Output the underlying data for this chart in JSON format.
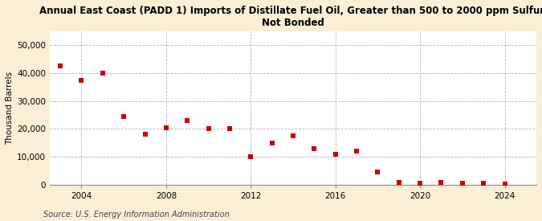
{
  "title": "Annual East Coast (PADD 1) Imports of Distillate Fuel Oil, Greater than 500 to 2000 ppm Sulfur,\nNot Bonded",
  "ylabel": "Thousand Barrels",
  "source": "Source: U.S. Energy Information Administration",
  "background_color": "#faefd4",
  "plot_background_color": "#ffffff",
  "marker_color": "#cc0000",
  "marker_size": 5,
  "years": [
    2003,
    2004,
    2005,
    2006,
    2007,
    2008,
    2009,
    2010,
    2011,
    2012,
    2013,
    2014,
    2015,
    2016,
    2017,
    2018,
    2019,
    2020,
    2021,
    2022,
    2023,
    2024
  ],
  "values": [
    42500,
    37500,
    40000,
    24500,
    18000,
    20500,
    23000,
    20000,
    20000,
    10000,
    15000,
    17500,
    13000,
    11000,
    12000,
    4500,
    800,
    400,
    800,
    400,
    400,
    200
  ],
  "ylim": [
    0,
    55000
  ],
  "xlim": [
    2002.5,
    2025.5
  ],
  "yticks": [
    0,
    10000,
    20000,
    30000,
    40000,
    50000
  ],
  "xticks": [
    2004,
    2008,
    2012,
    2016,
    2020,
    2024
  ],
  "title_fontsize": 8.5,
  "axis_fontsize": 7.5,
  "source_fontsize": 7
}
